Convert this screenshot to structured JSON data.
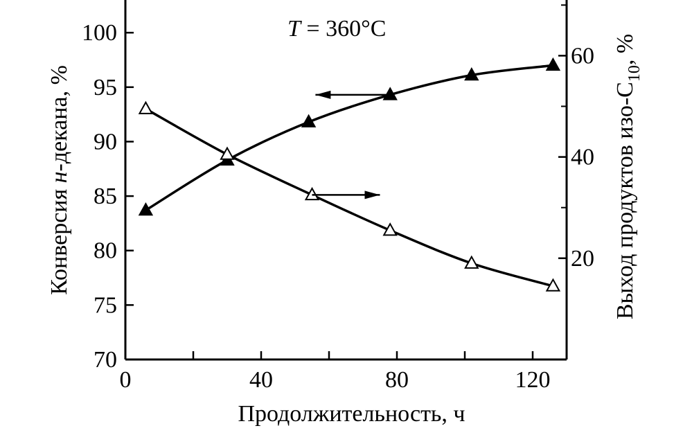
{
  "chart_data": {
    "type": "line",
    "annotation": {
      "var": "T",
      "text": " = 360°C"
    },
    "xlabel": "Продолжительность, ч",
    "ylabel_left": {
      "pre": "Конверсия ",
      "italic": "н",
      "post": "-декана, %"
    },
    "ylabel_right": {
      "pre": "Выход продуктов изо-C",
      "sub": "10",
      "post": ", %"
    },
    "xlim": [
      0,
      130
    ],
    "ylim_left": [
      70,
      103
    ],
    "ylim_right": [
      0,
      71
    ],
    "x_ticks_labeled": [
      0,
      40,
      80,
      120
    ],
    "x_ticks_minor": [
      20,
      60,
      100
    ],
    "y_left_ticks": [
      70,
      75,
      80,
      85,
      90,
      95,
      100
    ],
    "y_right_ticks": [
      20,
      40,
      60
    ],
    "y_right_minor_ticks": [
      30,
      50,
      70
    ],
    "series": [
      {
        "marker": "filled-triangle",
        "axis": "left",
        "x": [
          6,
          30,
          54,
          78,
          102,
          126
        ],
        "y": [
          83.7,
          88.3,
          91.8,
          94.3,
          96.1,
          97.0
        ]
      },
      {
        "marker": "open-triangle",
        "axis": "right",
        "x": [
          6,
          30,
          55,
          78,
          102,
          126
        ],
        "y": [
          49.5,
          40.5,
          32.5,
          25.5,
          19.0,
          14.5
        ]
      }
    ],
    "arrows": [
      {
        "points_to": "left",
        "at_x": [
          56,
          78
        ],
        "y_left": 94.3
      },
      {
        "points_to": "right",
        "at_x": [
          55,
          75
        ],
        "y_right": 32.5
      }
    ]
  }
}
